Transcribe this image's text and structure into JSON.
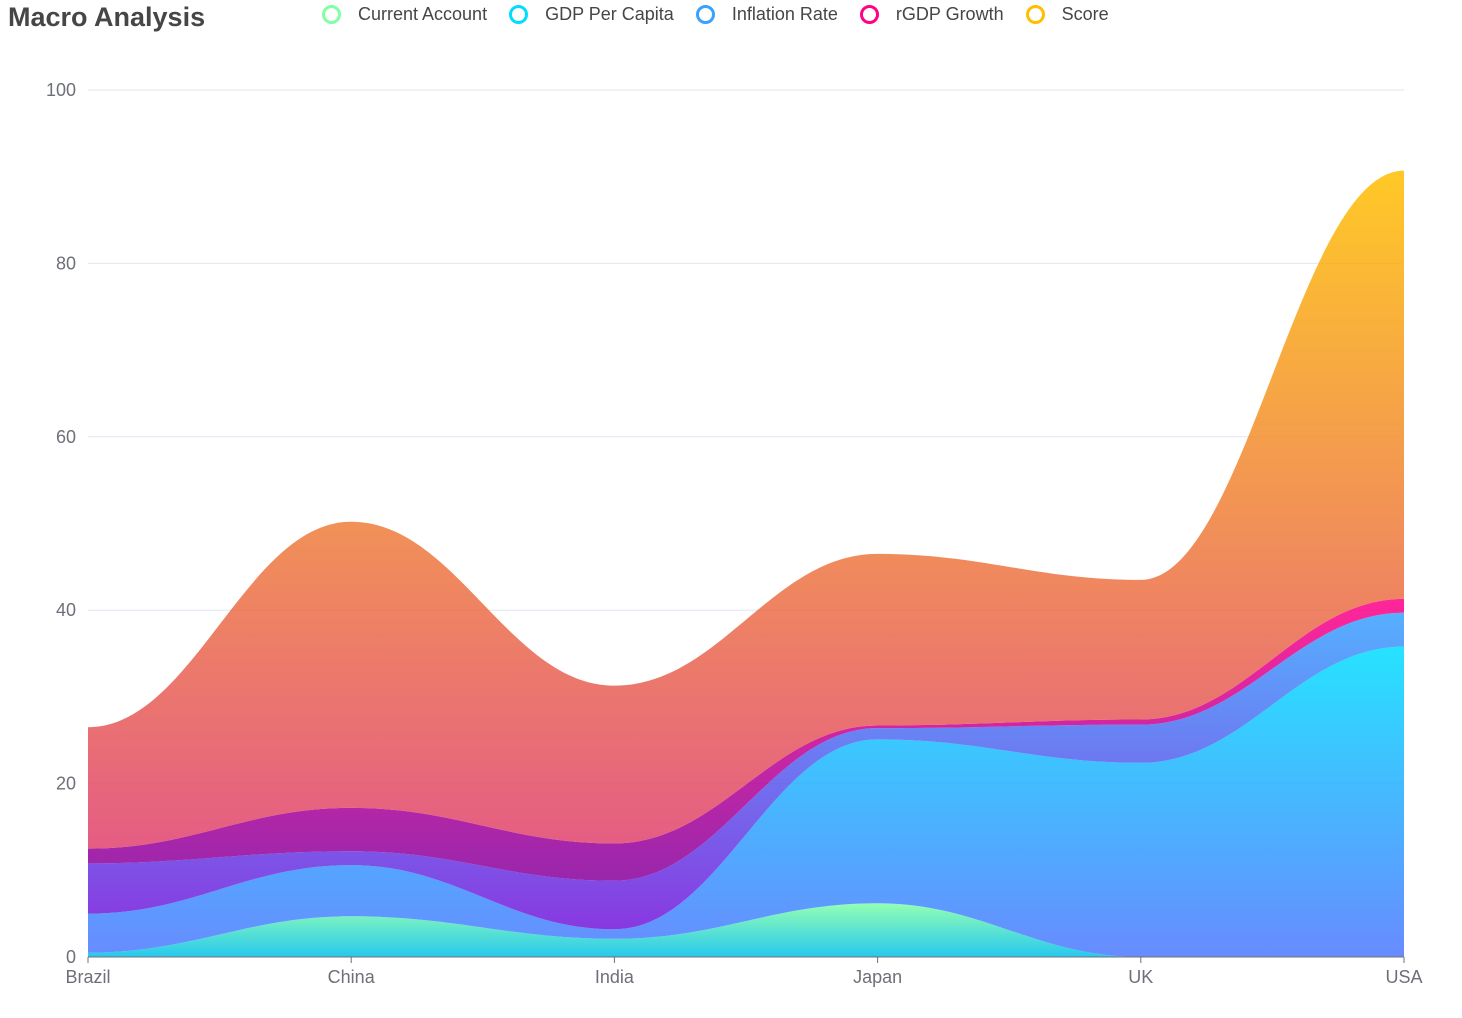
{
  "title": "Macro Analysis",
  "chart_data": {
    "type": "area",
    "stacked": true,
    "smooth": true,
    "categories": [
      "Brazil",
      "China",
      "India",
      "Japan",
      "UK",
      "USA"
    ],
    "ylim": [
      0,
      100
    ],
    "yticks": [
      0,
      20,
      40,
      60,
      80,
      100
    ],
    "grid": true,
    "legend_position": "top",
    "series": [
      {
        "name": "Current Account",
        "values": [
          0.5,
          4.7,
          2.1,
          6.2,
          0.0,
          0.0
        ],
        "color": "#80FFA5",
        "color_to": "#01BFEC"
      },
      {
        "name": "GDP Per Capita",
        "values": [
          4.5,
          5.9,
          1.1,
          18.9,
          22.4,
          35.8
        ],
        "color": "#00DDFF",
        "color_to": "#4D77FF"
      },
      {
        "name": "Inflation Rate",
        "values": [
          5.8,
          1.6,
          5.6,
          1.3,
          4.4,
          3.9
        ],
        "color": "#37A2FF",
        "color_to": "#7415DB"
      },
      {
        "name": "rGDP Growth",
        "values": [
          1.7,
          5.0,
          4.3,
          0.3,
          0.6,
          1.6
        ],
        "color": "#FF0087",
        "color_to": "#87009D"
      },
      {
        "name": "Score",
        "values": [
          14.0,
          33.0,
          18.2,
          19.8,
          16.1,
          49.4
        ],
        "color": "#FFBF00",
        "color_to": "#E0406E"
      }
    ]
  }
}
